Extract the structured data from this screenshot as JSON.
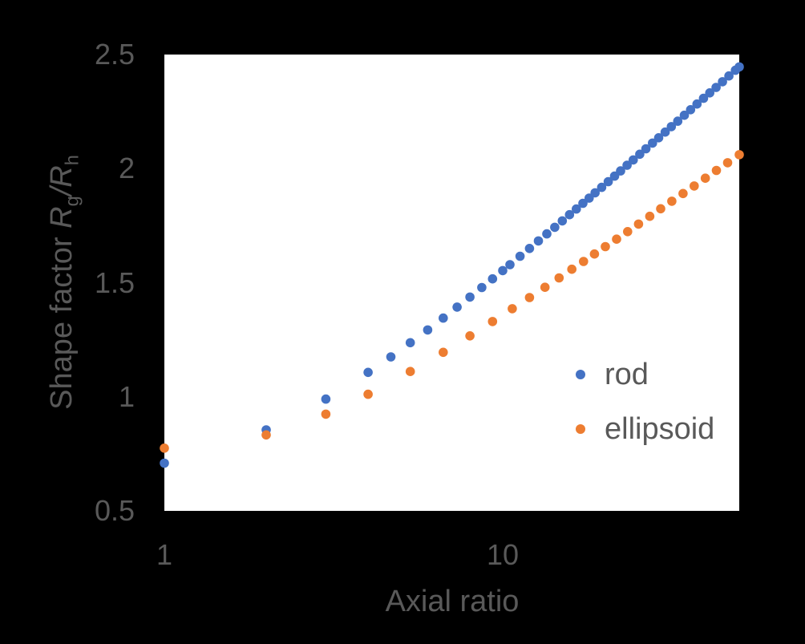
{
  "chart": {
    "background_color": "#000000",
    "plot_background_color": "#ffffff",
    "text_color": "#595959",
    "x_axis": {
      "label": "Axial ratio",
      "scale": "log",
      "min": 1,
      "max": 50,
      "tick_labels": [
        "1",
        "10"
      ],
      "tick_values": [
        1,
        10
      ]
    },
    "y_axis": {
      "label_prefix": "Shape factor ",
      "label_r1": "R",
      "label_sub1": "g",
      "label_slash": "/",
      "label_r2": "R",
      "label_sub2": "h",
      "min": 0.5,
      "max": 2.5,
      "tick_labels": [
        "0.5",
        "1",
        "1.5",
        "2",
        "2.5"
      ],
      "tick_values": [
        0.5,
        1,
        1.5,
        2,
        2.5
      ]
    },
    "legend": [
      {
        "label": "rod",
        "color": "#4472C4"
      },
      {
        "label": "ellipsoid",
        "color": "#ED7D31"
      }
    ]
  },
  "chart_data": {
    "type": "scatter",
    "title": "",
    "xlabel": "Axial ratio",
    "ylabel": "Shape factor Rg/Rh",
    "xscale": "log",
    "xlim": [
      1,
      50
    ],
    "ylim": [
      0.5,
      2.5
    ],
    "grid": false,
    "legend_position": "inside-right",
    "marker_diameter_px": 11.6,
    "series": [
      {
        "name": "rod",
        "color": "#4472C4",
        "x": [
          1,
          2,
          3,
          4,
          4.67,
          5.33,
          6,
          6.67,
          7.33,
          8,
          8.67,
          9.33,
          10,
          10.5,
          11.25,
          12,
          12.75,
          13.5,
          14.25,
          15,
          15.75,
          16.5,
          17.25,
          18,
          18.75,
          19.6,
          20.5,
          21.4,
          22.3,
          23.3,
          24.3,
          25.4,
          26.5,
          27.7,
          28.9,
          30.2,
          31.5,
          32.9,
          34.4,
          35.9,
          37.5,
          39.2,
          40.9,
          42.7,
          44.6,
          46.6,
          48.7,
          50
        ],
        "y": [
          0.709,
          0.855,
          0.99,
          1.107,
          1.175,
          1.237,
          1.293,
          1.345,
          1.393,
          1.437,
          1.479,
          1.517,
          1.553,
          1.579,
          1.616,
          1.65,
          1.683,
          1.714,
          1.743,
          1.771,
          1.798,
          1.823,
          1.848,
          1.871,
          1.894,
          1.918,
          1.943,
          1.967,
          1.99,
          2.015,
          2.038,
          2.063,
          2.087,
          2.112,
          2.135,
          2.16,
          2.184,
          2.208,
          2.234,
          2.258,
          2.283,
          2.308,
          2.332,
          2.356,
          2.381,
          2.406,
          2.431,
          2.446
        ]
      },
      {
        "name": "ellipsoid",
        "color": "#ED7D31",
        "x": [
          1,
          2,
          3,
          4,
          5.33,
          6.67,
          8,
          9.33,
          10.67,
          12,
          13.33,
          14.67,
          16,
          17.33,
          18.67,
          20.1,
          21.7,
          23.4,
          25.2,
          27.2,
          29.3,
          31.6,
          34.1,
          36.8,
          39.7,
          42.8,
          46.2,
          50
        ],
        "y": [
          0.775,
          0.833,
          0.924,
          1.011,
          1.111,
          1.195,
          1.267,
          1.33,
          1.386,
          1.435,
          1.48,
          1.521,
          1.559,
          1.593,
          1.626,
          1.658,
          1.691,
          1.724,
          1.757,
          1.791,
          1.824,
          1.857,
          1.891,
          1.924,
          1.958,
          1.992,
          2.026,
          2.061
        ]
      }
    ]
  }
}
